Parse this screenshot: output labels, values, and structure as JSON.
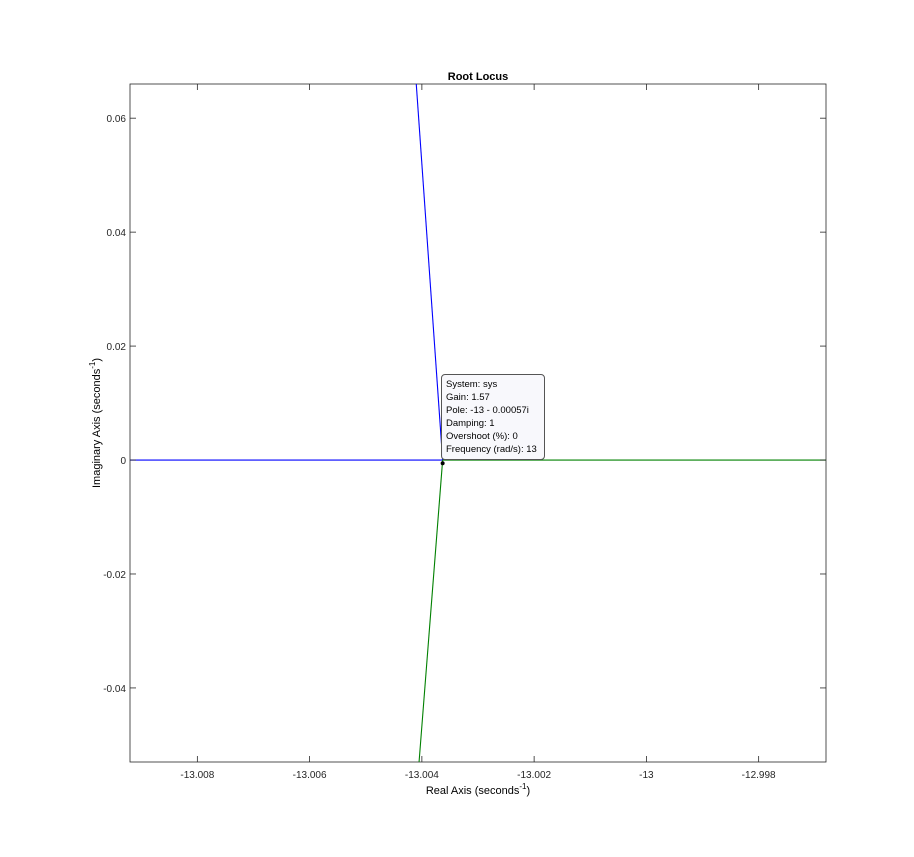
{
  "chart_data": {
    "type": "line",
    "title": "Root Locus",
    "xlabel": "Real Axis (seconds",
    "xlabel_sup": "-1",
    "ylabel": "Imaginary Axis (seconds",
    "ylabel_sup": "-1",
    "xlim": [
      -13.0092,
      -12.9968
    ],
    "ylim": [
      -0.053,
      0.066
    ],
    "xticks": [
      {
        "value": -13.008,
        "label": "-13.008"
      },
      {
        "value": -13.006,
        "label": "-13.006"
      },
      {
        "value": -13.004,
        "label": "-13.004"
      },
      {
        "value": -13.002,
        "label": "-13.002"
      },
      {
        "value": -13.0,
        "label": "-13"
      },
      {
        "value": -12.998,
        "label": "-12.998"
      }
    ],
    "yticks": [
      {
        "value": 0.06,
        "label": "0.06"
      },
      {
        "value": 0.04,
        "label": "0.04"
      },
      {
        "value": 0.02,
        "label": "0.02"
      },
      {
        "value": 0.0,
        "label": "0"
      },
      {
        "value": -0.02,
        "label": "-0.02"
      },
      {
        "value": -0.04,
        "label": "-0.04"
      }
    ],
    "grid": false,
    "series": [
      {
        "color": "#0000ff",
        "segments": [
          [
            [
              -13.0092,
              0.0
            ],
            [
              -13.00363,
              0.0
            ]
          ],
          [
            [
              -13.00363,
              0.0
            ],
            [
              -13.0041,
              0.066
            ]
          ]
        ]
      },
      {
        "color": "#008000",
        "segments": [
          [
            [
              -13.00363,
              0.0
            ],
            [
              -12.9968,
              0.0
            ]
          ],
          [
            [
              -13.00363,
              0.0
            ],
            [
              -13.00405,
              -0.053
            ]
          ]
        ]
      }
    ],
    "marker": {
      "x": -13.00363,
      "y": -0.00057,
      "color": "#000000"
    },
    "datatip": {
      "system": "System: sys",
      "gain": "Gain: 1.57",
      "pole": "Pole: -13 - 0.00057i",
      "damping": "Damping: 1",
      "overshoot": "Overshoot (%): 0",
      "frequency": "Frequency (rad/s): 13"
    }
  }
}
